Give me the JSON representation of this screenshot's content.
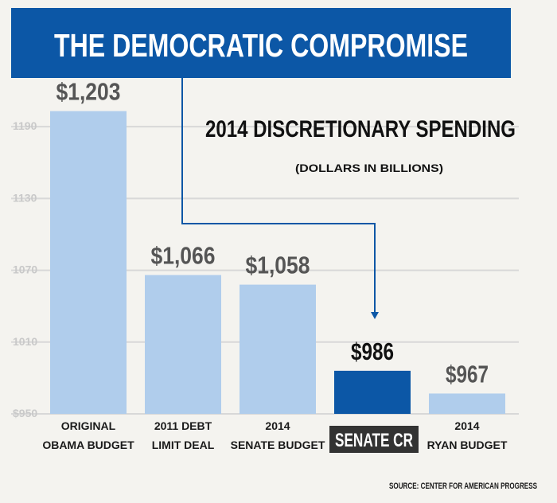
{
  "banner": {
    "title": "THE DEMOCRATIC COMPROMISE",
    "bg_color": "#0c57a6",
    "text_color": "#ffffff"
  },
  "chart_data": {
    "type": "bar",
    "title": "2014 DISCRETIONARY SPENDING",
    "subtitle": "(DOLLARS IN BILLIONS)",
    "categories": [
      [
        "ORIGINAL",
        "OBAMA BUDGET"
      ],
      [
        "2011 DEBT",
        "LIMIT DEAL"
      ],
      [
        "2014",
        "SENATE BUDGET"
      ],
      [
        "SENATE CR"
      ],
      [
        "2014",
        "RYAN BUDGET"
      ]
    ],
    "values": [
      1203,
      1066,
      1058,
      986,
      967
    ],
    "value_labels": [
      "$1,203",
      "$1,066",
      "$1,058",
      "$986",
      "$967"
    ],
    "highlight_index": 3,
    "yticks": [
      950,
      1010,
      1070,
      1130,
      1190
    ],
    "ytick_labels": [
      "$950",
      "1010",
      "1070",
      "1130",
      "1190"
    ],
    "ylim": [
      950,
      1230
    ],
    "bar_color": "#b0cdec",
    "highlight_color": "#0c57a6",
    "highlight_label_bg": "#333333",
    "grid": true,
    "grid_color": "#d8d8d8",
    "source": "SOURCE: CENTER FOR AMERICAN PROGRESS"
  }
}
